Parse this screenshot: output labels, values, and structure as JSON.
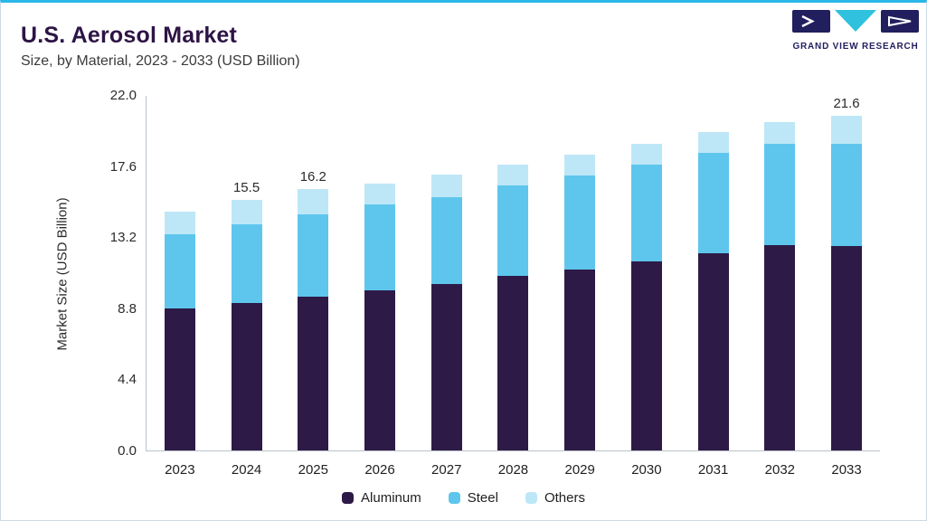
{
  "accent_color": "#29b7e8",
  "header": {
    "title": "U.S. Aerosol Market",
    "subtitle": "Size, by Material, 2023 - 2033 (USD Billion)"
  },
  "logo": {
    "text": "GRAND VIEW RESEARCH",
    "navy": "#221f5e",
    "teal": "#2fc1dd"
  },
  "chart_data": {
    "type": "bar",
    "stacked": true,
    "title": "U.S. Aerosol Market",
    "subtitle": "Size, by Material, 2023 - 2033 (USD Billion)",
    "xlabel": "",
    "ylabel": "Market Size (USD Billion)",
    "ylim": [
      0,
      22
    ],
    "yticks": [
      {
        "label": "22.0",
        "value": 22.0
      },
      {
        "label": "17.6",
        "value": 17.6
      },
      {
        "label": "13.2",
        "value": 13.2
      },
      {
        "label": "8.8",
        "value": 8.8
      },
      {
        "label": "4.4",
        "value": 4.4
      },
      {
        "label": "0.0",
        "value": 0.0
      }
    ],
    "grid": false,
    "legend_position": "bottom",
    "categories": [
      "2023",
      "2024",
      "2025",
      "2026",
      "2027",
      "2028",
      "2029",
      "2030",
      "2031",
      "2032",
      "2033"
    ],
    "series": [
      {
        "name": "Aluminum",
        "color": "#2e1a46",
        "values": [
          8.8,
          9.1,
          9.5,
          9.9,
          10.3,
          10.8,
          11.2,
          11.7,
          12.2,
          12.7,
          13.2
        ]
      },
      {
        "name": "Steel",
        "color": "#5ec6ed",
        "values": [
          4.6,
          4.9,
          5.1,
          5.3,
          5.4,
          5.6,
          5.8,
          6.0,
          6.2,
          6.3,
          6.6
        ]
      },
      {
        "name": "Others",
        "color": "#bde7f7",
        "values": [
          1.4,
          1.5,
          1.6,
          1.3,
          1.4,
          1.3,
          1.3,
          1.3,
          1.3,
          1.3,
          1.8
        ]
      }
    ],
    "totals": [
      14.8,
      15.5,
      16.2,
      16.5,
      17.1,
      17.7,
      18.3,
      19.0,
      19.7,
      20.3,
      21.6
    ],
    "bar_labels": [
      "",
      "15.5",
      "16.2",
      "",
      "",
      "",
      "",
      "",
      "",
      "",
      "21.6"
    ]
  }
}
